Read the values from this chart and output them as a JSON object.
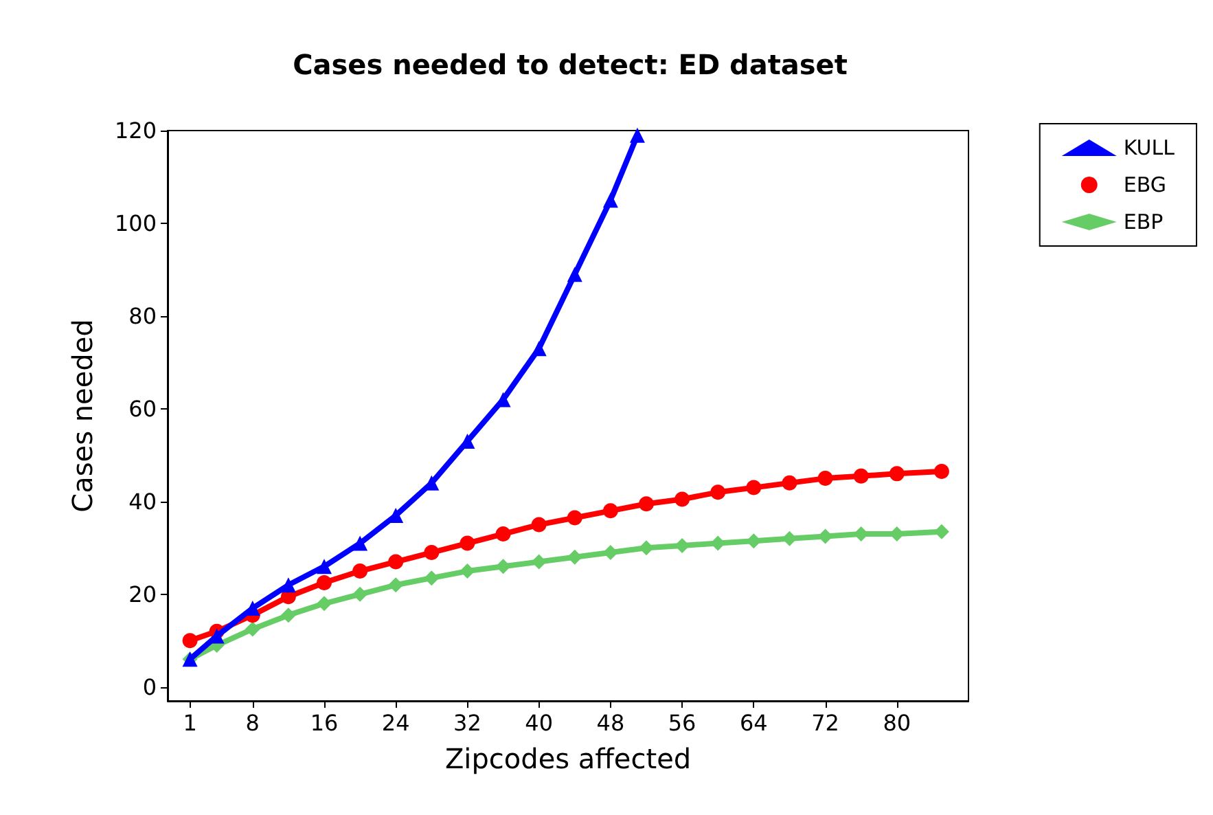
{
  "chart_data": {
    "type": "line",
    "title": "Cases needed to detect: ED dataset",
    "xlabel": "Zipcodes affected",
    "ylabel": "Cases needed",
    "xlim": [
      -1.5,
      88
    ],
    "xticks": [
      1,
      8,
      16,
      24,
      32,
      40,
      48,
      56,
      64,
      72,
      80
    ],
    "ylim": [
      -3,
      120
    ],
    "yticks": [
      0,
      20,
      40,
      60,
      80,
      100,
      120
    ],
    "grid": false,
    "legend": "top right",
    "line_style": "solid",
    "series": [
      {
        "name": "KULL",
        "color": "#0000ff",
        "marker": "triangle",
        "x": [
          1,
          4,
          8,
          12,
          16,
          20,
          24,
          28,
          32,
          36,
          40,
          44,
          48,
          51
        ],
        "values": [
          6,
          11,
          17,
          22,
          26,
          31,
          37,
          44,
          53,
          62,
          73,
          89,
          105,
          119
        ]
      },
      {
        "name": "EBG",
        "color": "#ff0000",
        "marker": "circle",
        "x": [
          1,
          4,
          8,
          12,
          16,
          20,
          24,
          28,
          32,
          36,
          40,
          44,
          48,
          52,
          56,
          60,
          64,
          68,
          72,
          76,
          80,
          85
        ],
        "values": [
          10,
          12,
          15.5,
          19.5,
          22.5,
          25,
          27,
          29,
          31,
          33,
          35,
          36.5,
          38,
          39.5,
          40.5,
          42,
          43,
          44,
          45,
          45.5,
          46,
          46.5
        ]
      },
      {
        "name": "EBP",
        "color": "#66cc66",
        "marker": "diamond",
        "x": [
          1,
          4,
          8,
          12,
          16,
          20,
          24,
          28,
          32,
          36,
          40,
          44,
          48,
          52,
          56,
          60,
          64,
          68,
          72,
          76,
          80,
          85
        ],
        "values": [
          6,
          9,
          12.5,
          15.5,
          18,
          20,
          22,
          23.5,
          25,
          26,
          27,
          28,
          29,
          30,
          30.5,
          31,
          31.5,
          32,
          32.5,
          33,
          33,
          33.5
        ]
      }
    ]
  }
}
